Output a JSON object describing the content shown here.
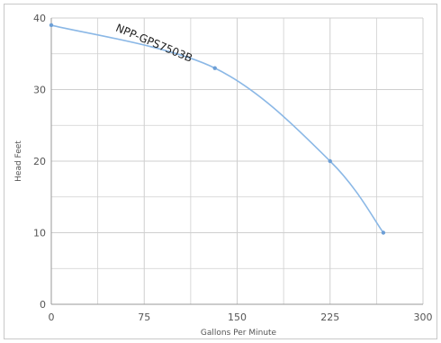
{
  "chart_data": {
    "type": "line",
    "title": "",
    "xlabel": "Gallons Per Minute",
    "ylabel": "Head Feet",
    "xlim": [
      0,
      300
    ],
    "ylim": [
      0,
      40
    ],
    "xticks": [
      "0",
      "75",
      "150",
      "225",
      "300"
    ],
    "yticks": [
      "0",
      "10",
      "20",
      "30",
      "40"
    ],
    "grid": true,
    "colors": {
      "series": "#8bb8e6",
      "grid": "#cfcfcf"
    },
    "series": [
      {
        "name": "NPP-GPS7503B",
        "x": [
          0,
          132,
          225,
          268
        ],
        "y": [
          39,
          33,
          20,
          10
        ]
      }
    ]
  }
}
